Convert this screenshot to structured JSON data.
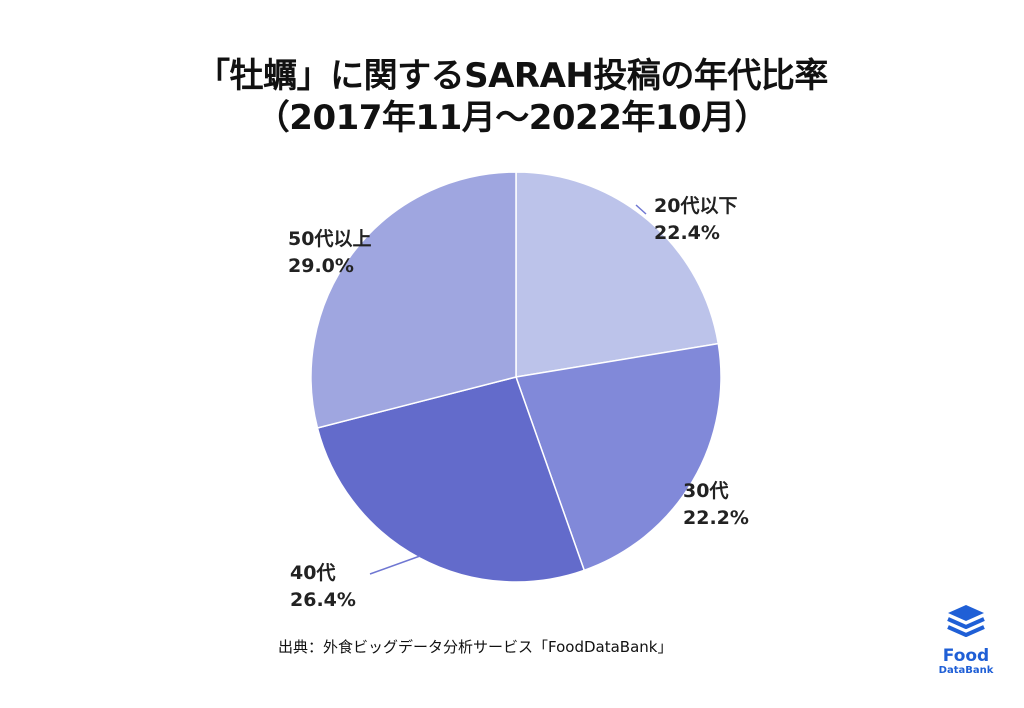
{
  "title_line1": "「牡蠣」に関するSARAH投稿の年代比率",
  "title_line2": "（2017年11月〜2022年10月）",
  "source": "出典：外食ビッグデータ分析サービス「FoodDataBank」",
  "logo": {
    "word1": "Food",
    "word2": "DataBank",
    "icon": "stacked-layers-logo-icon",
    "color": "#1f5fd6"
  },
  "chart_data": {
    "type": "pie",
    "title": "「牡蠣」に関するSARAH投稿の年代比率（2017年11月〜2022年10月）",
    "start_angle_deg": 0,
    "direction": "clockwise",
    "slices": [
      {
        "label": "20代以下",
        "value": 22.4,
        "value_label": "22.4%",
        "color": "#bcc3ea"
      },
      {
        "label": "30代",
        "value": 22.2,
        "value_label": "22.2%",
        "color": "#8189d9"
      },
      {
        "label": "40代",
        "value": 26.4,
        "value_label": "26.4%",
        "color": "#636bcb"
      },
      {
        "label": "50代以上",
        "value": 29.0,
        "value_label": "29.0%",
        "color": "#9fa6e0"
      }
    ]
  }
}
